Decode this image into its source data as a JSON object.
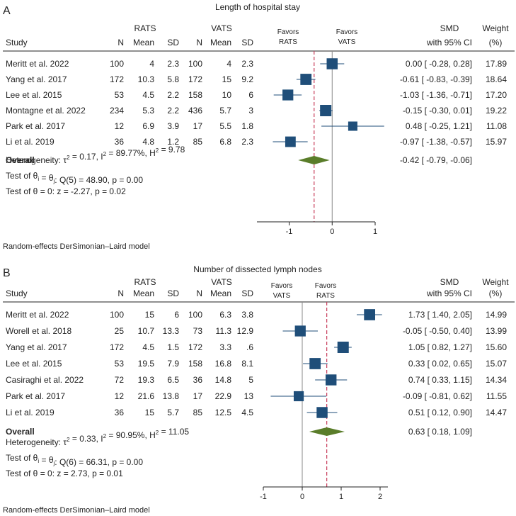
{
  "chart_data": [
    {
      "type": "forest",
      "panel": "A",
      "title": "Length of hospital stay",
      "group_labels": [
        "RATS",
        "VATS"
      ],
      "favors_left": [
        "Favors",
        "RATS"
      ],
      "favors_right": [
        "Favors",
        "VATS"
      ],
      "columns": [
        "Study",
        "N",
        "Mean",
        "SD",
        "N",
        "Mean",
        "SD",
        "SMD",
        "with 95% CI",
        "Weight",
        "(%)"
      ],
      "studies": [
        {
          "study": "Meritt et al. 2022",
          "n1": "100",
          "m1": "4",
          "sd1": "2.3",
          "n2": "100",
          "m2": "4",
          "sd2": "2.3",
          "smd": 0.0,
          "lo": -0.28,
          "hi": 0.28,
          "ci_text": "0.00 [ -0.28,  0.28]",
          "weight": 17.89,
          "weight_text": "17.89"
        },
        {
          "study": "Yang et al. 2017",
          "n1": "172",
          "m1": "10.3",
          "sd1": "5.8",
          "n2": "172",
          "m2": "15",
          "sd2": "9.2",
          "smd": -0.61,
          "lo": -0.83,
          "hi": -0.39,
          "ci_text": "-0.61 [ -0.83, -0.39]",
          "weight": 18.64,
          "weight_text": "18.64"
        },
        {
          "study": "Lee et al. 2015",
          "n1": "53",
          "m1": "4.5",
          "sd1": "2.2",
          "n2": "158",
          "m2": "10",
          "sd2": "6",
          "smd": -1.03,
          "lo": -1.36,
          "hi": -0.71,
          "ci_text": "-1.03 [ -1.36, -0.71]",
          "weight": 17.2,
          "weight_text": "17.20"
        },
        {
          "study": "Montagne et al. 2022",
          "n1": "234",
          "m1": "5.3",
          "sd1": "2.2",
          "n2": "436",
          "m2": "5.7",
          "sd2": "3",
          "smd": -0.15,
          "lo": -0.3,
          "hi": 0.01,
          "ci_text": "-0.15 [ -0.30,  0.01]",
          "weight": 19.22,
          "weight_text": "19.22"
        },
        {
          "study": "Park et al. 2017",
          "n1": "12",
          "m1": "6.9",
          "sd1": "3.9",
          "n2": "17",
          "m2": "5.5",
          "sd2": "1.8",
          "smd": 0.48,
          "lo": -0.25,
          "hi": 1.21,
          "ci_text": "0.48 [ -0.25,  1.21]",
          "weight": 11.08,
          "weight_text": "11.08"
        },
        {
          "study": "Li et al. 2019",
          "n1": "36",
          "m1": "4.8",
          "sd1": "1.2",
          "n2": "85",
          "m2": "6.8",
          "sd2": "2.3",
          "smd": -0.97,
          "lo": -1.38,
          "hi": -0.57,
          "ci_text": "-0.97 [ -1.38, -0.57]",
          "weight": 15.97,
          "weight_text": "15.97"
        }
      ],
      "overall": {
        "label": "Overall",
        "smd": -0.42,
        "lo": -0.79,
        "hi": -0.06,
        "ci_text": "-0.42 [ -0.79, -0.06]"
      },
      "stats": [
        {
          "lead": "Heterogeneity: τ",
          "sup1": "2",
          "mid": " = 0.17, I",
          "sup2": "2",
          "tail": " = 89.77%, H",
          "sup3": "2",
          "end": " = 9.78"
        },
        {
          "lead": "Test of θ",
          "sub1": "i",
          "mid": " = θ",
          "sub2": "j",
          "tail": ": Q(5) = 48.90, p = 0.00"
        },
        {
          "text": "Test of θ = 0: z = -2.27, p = 0.02"
        }
      ],
      "xlim": [
        -1.75,
        1.0
      ],
      "xticks": [
        -1,
        0,
        1
      ],
      "xtick_labels": [
        "-1",
        "0",
        "1"
      ],
      "model_note": "Random-effects DerSimonian–Laird model"
    },
    {
      "type": "forest",
      "panel": "B",
      "title": "Number of dissected lymph nodes",
      "group_labels": [
        "RATS",
        "VATS"
      ],
      "favors_left": [
        "Favors",
        "VATS"
      ],
      "favors_right": [
        "Favors",
        "RATS"
      ],
      "columns": [
        "Study",
        "N",
        "Mean",
        "SD",
        "N",
        "Mean",
        "SD",
        "SMD",
        "with 95% CI",
        "Weight",
        "(%)"
      ],
      "studies": [
        {
          "study": "Meritt et al. 2022",
          "n1": "100",
          "m1": "15",
          "sd1": "6",
          "n2": "100",
          "m2": "6.3",
          "sd2": "3.8",
          "smd": 1.73,
          "lo": 1.4,
          "hi": 2.05,
          "ci_text": "1.73 [  1.40,  2.05]",
          "weight": 14.99,
          "weight_text": "14.99"
        },
        {
          "study": "Worell et al. 2018",
          "n1": "25",
          "m1": "10.7",
          "sd1": "13.3",
          "n2": "73",
          "m2": "11.3",
          "sd2": "12.9",
          "smd": -0.05,
          "lo": -0.5,
          "hi": 0.4,
          "ci_text": "-0.05 [ -0.50,  0.40]",
          "weight": 13.99,
          "weight_text": "13.99"
        },
        {
          "study": "Yang et al. 2017",
          "n1": "172",
          "m1": "4.5",
          "sd1": "1.5",
          "n2": "172",
          "m2": "3.3",
          "sd2": ".6",
          "smd": 1.05,
          "lo": 0.82,
          "hi": 1.27,
          "ci_text": "1.05 [  0.82,  1.27]",
          "weight": 15.6,
          "weight_text": "15.60"
        },
        {
          "study": "Lee et al. 2015",
          "n1": "53",
          "m1": "19.5",
          "sd1": "7.9",
          "n2": "158",
          "m2": "16.8",
          "sd2": "8.1",
          "smd": 0.33,
          "lo": 0.02,
          "hi": 0.65,
          "ci_text": "0.33 [  0.02,  0.65]",
          "weight": 15.07,
          "weight_text": "15.07"
        },
        {
          "study": "Casiraghi et al. 2022",
          "n1": "72",
          "m1": "19.3",
          "sd1": "6.5",
          "n2": "36",
          "m2": "14.8",
          "sd2": "5",
          "smd": 0.74,
          "lo": 0.33,
          "hi": 1.15,
          "ci_text": "0.74 [  0.33,  1.15]",
          "weight": 14.34,
          "weight_text": "14.34"
        },
        {
          "study": "Park et al. 2017",
          "n1": "12",
          "m1": "21.6",
          "sd1": "13.8",
          "n2": "17",
          "m2": "22.9",
          "sd2": "13",
          "smd": -0.09,
          "lo": -0.81,
          "hi": 0.62,
          "ci_text": "-0.09 [ -0.81,  0.62]",
          "weight": 11.55,
          "weight_text": "11.55"
        },
        {
          "study": "Li et al. 2019",
          "n1": "36",
          "m1": "15",
          "sd1": "5.7",
          "n2": "85",
          "m2": "12.5",
          "sd2": "4.5",
          "smd": 0.51,
          "lo": 0.12,
          "hi": 0.9,
          "ci_text": "0.51 [  0.12,  0.90]",
          "weight": 14.47,
          "weight_text": "14.47"
        }
      ],
      "overall": {
        "label": "Overall",
        "smd": 0.63,
        "lo": 0.18,
        "hi": 1.09,
        "ci_text": "0.63 [  0.18,  1.09]"
      },
      "stats": [
        {
          "lead": "Heterogeneity: τ",
          "sup1": "2",
          "mid": " = 0.33, I",
          "sup2": "2",
          "tail": " = 90.95%, H",
          "sup3": "2",
          "end": " = 11.05"
        },
        {
          "lead": "Test of θ",
          "sub1": "i",
          "mid": " = θ",
          "sub2": "j",
          "tail": ": Q(6) = 66.31, p = 0.00"
        },
        {
          "text": "Test of θ = 0: z = 2.73, p = 0.01"
        }
      ],
      "xlim": [
        -1.0,
        2.2
      ],
      "xticks": [
        -1,
        0,
        1,
        2
      ],
      "xtick_labels": [
        "-1",
        "0",
        "1",
        "2"
      ],
      "model_note": "Random-effects DerSimonian–Laird model"
    }
  ],
  "colors": {
    "marker": "#1f4e79",
    "diamond": "#5a7d2a",
    "overall_line": "#c83c5a",
    "ci_line": "#1f4e79",
    "null_line": "#888888",
    "rule": "#222222"
  }
}
